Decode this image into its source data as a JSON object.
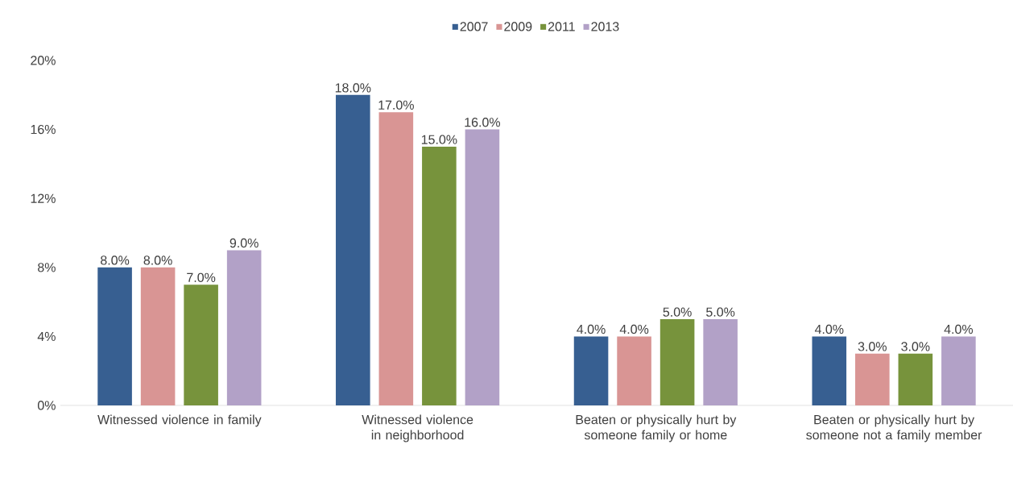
{
  "chart_data": {
    "type": "bar",
    "categories": [
      "Witnessed violence in family",
      "Witnessed violence in neighborhood",
      "Beaten or physically hurt by someone family or home",
      "Beaten or physically hurt by someone not a family member"
    ],
    "series": [
      {
        "name": "2007",
        "color": "#375f91",
        "values": [
          8,
          18,
          4,
          4
        ],
        "value_labels": [
          "8.0%",
          "18.0%",
          "4.0%",
          "4.0%"
        ]
      },
      {
        "name": "2009",
        "color": "#d99594",
        "values": [
          8,
          17,
          4,
          3
        ],
        "value_labels": [
          "8.0%",
          "17.0%",
          "4.0%",
          "3.0%"
        ]
      },
      {
        "name": "2011",
        "color": "#77933c",
        "values": [
          7,
          15,
          5,
          3
        ],
        "value_labels": [
          "7.0%",
          "15.0%",
          "5.0%",
          "3.0%"
        ]
      },
      {
        "name": "2013",
        "color": "#b2a1c7",
        "values": [
          9,
          16,
          5,
          4
        ],
        "value_labels": [
          "9.0%",
          "16.0%",
          "5.0%",
          "4.0%"
        ]
      }
    ],
    "ylim": [
      0,
      20
    ],
    "yticks": [
      {
        "value": 0,
        "label": "0%"
      },
      {
        "value": 4,
        "label": "4%"
      },
      {
        "value": 8,
        "label": "8%"
      },
      {
        "value": 12,
        "label": "12%"
      },
      {
        "value": 16,
        "label": "16%"
      },
      {
        "value": 20,
        "label": "20%"
      }
    ],
    "grid": false,
    "legend": "top"
  }
}
